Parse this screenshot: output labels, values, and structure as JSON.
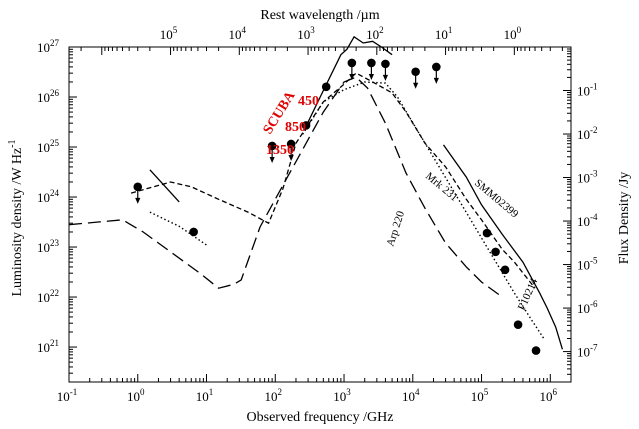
{
  "chart_data": {
    "type": "scatter",
    "log_x": true,
    "log_y": true,
    "xlim": [
      0.1,
      2000000
    ],
    "ylim_left": [
      2e+20,
      1e+27
    ],
    "ylim_right": [
      2e-08,
      1.0
    ],
    "grid": false,
    "legend": "none",
    "xlabel": "Observed frequency  /GHz",
    "ylabel_left": "Luminosity density   /W Hz",
    "ylabel_left_sup": "-1",
    "ylabel_right": "Flux Density   /Jy",
    "top_axis_title": "Rest wavelength     /µm",
    "bottom_ticks": [
      {
        "value": 0.1,
        "label": "10",
        "exp": "-1"
      },
      {
        "value": 1,
        "label": "10",
        "exp": "0"
      },
      {
        "value": 10,
        "label": "10",
        "exp": "1"
      },
      {
        "value": 100,
        "label": "10",
        "exp": "2"
      },
      {
        "value": 1000,
        "label": "10",
        "exp": "3"
      },
      {
        "value": 10000,
        "label": "10",
        "exp": "4"
      },
      {
        "value": 100000,
        "label": "10",
        "exp": "5"
      },
      {
        "value": 1000000,
        "label": "10",
        "exp": "6"
      }
    ],
    "left_ticks": [
      {
        "value": 1e+21,
        "label": "10",
        "exp": "21"
      },
      {
        "value": 1e+22,
        "label": "10",
        "exp": "22"
      },
      {
        "value": 1e+23,
        "label": "10",
        "exp": "23"
      },
      {
        "value": 1e+24,
        "label": "10",
        "exp": "24"
      },
      {
        "value": 1e+25,
        "label": "10",
        "exp": "25"
      },
      {
        "value": 1e+26,
        "label": "10",
        "exp": "26"
      },
      {
        "value": 1e+27,
        "label": "10",
        "exp": "27"
      }
    ],
    "right_ticks": [
      {
        "value": 1e-07,
        "label": "10",
        "exp": "-7"
      },
      {
        "value": 1e-06,
        "label": "10",
        "exp": "-6"
      },
      {
        "value": 1e-05,
        "label": "10",
        "exp": "-5"
      },
      {
        "value": 0.0001,
        "label": "10",
        "exp": "-4"
      },
      {
        "value": 0.001,
        "label": "10",
        "exp": "-3"
      },
      {
        "value": 0.01,
        "label": "10",
        "exp": "-2"
      },
      {
        "value": 0.1,
        "label": "10",
        "exp": "-1"
      }
    ],
    "top_ticks": [
      {
        "wavelength_um": 100000,
        "label": "10",
        "exp": "5"
      },
      {
        "wavelength_um": 10000,
        "label": "10",
        "exp": "4"
      },
      {
        "wavelength_um": 1000,
        "label": "10",
        "exp": "3"
      },
      {
        "wavelength_um": 100,
        "label": "10",
        "exp": "2"
      },
      {
        "wavelength_um": 10,
        "label": "10",
        "exp": "1"
      },
      {
        "wavelength_um": 1,
        "label": "10",
        "exp": "0"
      }
    ],
    "points": [
      {
        "x": 1.0,
        "y": 1.6e+24,
        "upper_limit": true
      },
      {
        "x": 6.5,
        "y": 2e+23,
        "upper_limit": false
      },
      {
        "x": 90,
        "y": 1.05e+25,
        "upper_limit": true
      },
      {
        "x": 170,
        "y": 1.15e+25,
        "upper_limit": true
      },
      {
        "x": 280,
        "y": 2.7e+25,
        "upper_limit": false
      },
      {
        "x": 550,
        "y": 1.6e+26,
        "upper_limit": false
      },
      {
        "x": 1300,
        "y": 4.8e+26,
        "upper_limit": true
      },
      {
        "x": 2500,
        "y": 4.8e+26,
        "upper_limit": true
      },
      {
        "x": 4000,
        "y": 4.6e+26,
        "upper_limit": true
      },
      {
        "x": 11000,
        "y": 3.2e+26,
        "upper_limit": true
      },
      {
        "x": 22000,
        "y": 4e+26,
        "upper_limit": true
      },
      {
        "x": 120000,
        "y": 1.9e+23,
        "upper_limit": false
      },
      {
        "x": 160000,
        "y": 8e+22,
        "upper_limit": false
      },
      {
        "x": 220000,
        "y": 3.5e+22,
        "upper_limit": false
      },
      {
        "x": 340000,
        "y": 2.8e+21,
        "upper_limit": false
      },
      {
        "x": 620000,
        "y": 8.5e+20,
        "upper_limit": false
      }
    ],
    "series": [
      {
        "style": "solid",
        "points": [
          [
            280,
            2.6e+25
          ],
          [
            450,
            1e+26
          ],
          [
            900,
            7e+26
          ],
          [
            1100,
            9e+26
          ],
          [
            1400,
            1.6e+27
          ],
          [
            1900,
            1.2e+27
          ],
          [
            2600,
            1.3e+27
          ],
          [
            3500,
            1e+27
          ],
          [
            5000,
            7e+26
          ]
        ]
      },
      {
        "style": "solid",
        "points": [
          [
            28000,
            1.1e+25
          ],
          [
            60000,
            2.5e+24
          ],
          [
            100000,
            7e+23
          ],
          [
            200000,
            1.8e+23
          ],
          [
            400000,
            5e+22
          ],
          [
            700000,
            1.2e+22
          ],
          [
            900000,
            6e+21
          ],
          [
            1200000,
            2.5e+21
          ],
          [
            1500000,
            9e+20
          ]
        ]
      },
      {
        "style": "solid",
        "points": [
          [
            1.5,
            3.5e+24
          ],
          [
            4,
            8e+23
          ]
        ]
      },
      {
        "style": "dashed",
        "points": [
          [
            0.8,
            1.2e+24
          ],
          [
            3,
            2e+24
          ],
          [
            6,
            1.6e+24
          ],
          [
            15,
            9e+23
          ],
          [
            40,
            5e+23
          ],
          [
            80,
            3e+23
          ],
          [
            130,
            1.5e+24
          ],
          [
            200,
            1.2e+25
          ],
          [
            500,
            8e+25
          ],
          [
            1000,
            1.8e+26
          ],
          [
            1500,
            3e+26
          ],
          [
            3000,
            1.8e+26
          ],
          [
            5000,
            1.2e+26
          ],
          [
            8000,
            5e+25
          ],
          [
            15000,
            1.2e+25
          ],
          [
            30000,
            4e+24
          ],
          [
            60000,
            9e+23
          ],
          [
            100000,
            3.5e+23
          ],
          [
            200000,
            9e+22
          ],
          [
            300000,
            5e+22
          ],
          [
            600000,
            1.5e+22
          ]
        ]
      },
      {
        "style": "longdash",
        "points": [
          [
            0.1,
            2.8e+23
          ],
          [
            0.6,
            3.5e+23
          ],
          [
            1.2,
            2e+23
          ],
          [
            3,
            8e+22
          ],
          [
            8,
            3e+22
          ],
          [
            15,
            1.5e+22
          ],
          [
            25,
            1.8e+22
          ],
          [
            32,
            2.2e+22
          ],
          [
            60,
            2.5e+23
          ],
          [
            150,
            2.5e+24
          ],
          [
            500,
            5e+25
          ],
          [
            1000,
            2e+26
          ],
          [
            1500,
            2.5e+26
          ],
          [
            2200,
            1.5e+26
          ],
          [
            4000,
            3e+25
          ],
          [
            8000,
            3e+24
          ],
          [
            15000,
            6e+23
          ],
          [
            30000,
            1.2e+23
          ],
          [
            60000,
            4e+22
          ],
          [
            100000,
            2e+22
          ],
          [
            200000,
            1e+22
          ]
        ]
      },
      {
        "style": "dotted",
        "points": [
          [
            1.5,
            5e+23
          ],
          [
            4,
            2.6e+23
          ],
          [
            10,
            1.1e+23
          ]
        ]
      },
      {
        "style": "dotted",
        "points": [
          [
            250,
            1.8e+25
          ],
          [
            500,
            8e+25
          ],
          [
            1000,
            1.4e+26
          ],
          [
            2000,
            2e+26
          ],
          [
            4000,
            1.9e+26
          ],
          [
            6000,
            1e+26
          ],
          [
            300000,
            1.2e+22
          ],
          [
            500000,
            4e+21
          ],
          [
            800000,
            1.5e+21
          ]
        ]
      }
    ],
    "annotations": {
      "scuba": "SCUBA",
      "w450": "450",
      "w850": "850",
      "w1350": "1350",
      "mrk231": "Mrk 231",
      "arp220": "Arp 220",
      "smm": "SMM02399",
      "f10214": "F10214"
    }
  }
}
